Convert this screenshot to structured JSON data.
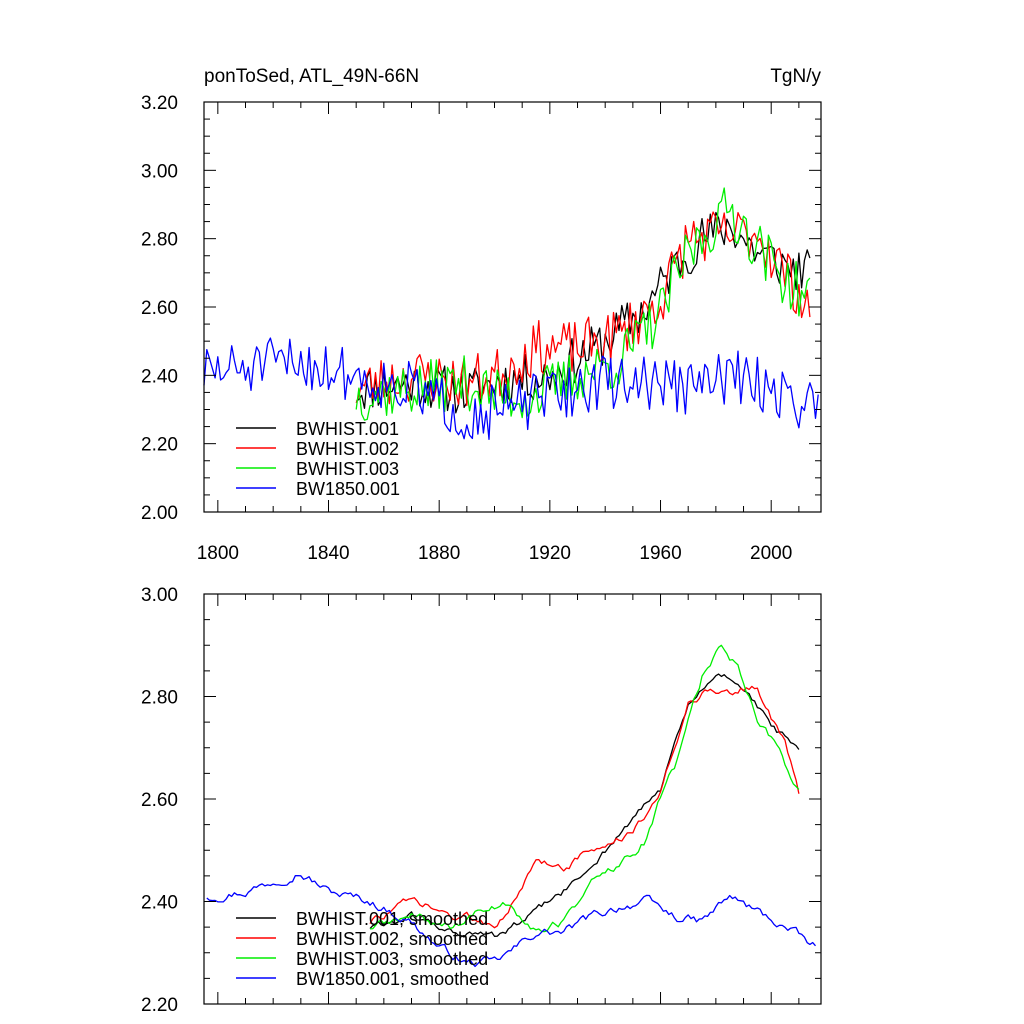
{
  "chart_data": [
    {
      "type": "line",
      "title_left": "ponToSed, ATL_49N-66N",
      "title_right": "TgN/y",
      "xlabel": "",
      "ylabel": "",
      "xlim": [
        1795,
        2018
      ],
      "ylim": [
        2.0,
        3.2
      ],
      "xticks": [
        1800,
        1840,
        1880,
        1920,
        1960,
        2000
      ],
      "xtick_labels": [
        "1800",
        "1840",
        "1880",
        "1920",
        "1960",
        "2000"
      ],
      "yticks": [
        2.0,
        2.2,
        2.4,
        2.6,
        2.8,
        3.0,
        3.2
      ],
      "ytick_labels": [
        "2.00",
        "2.20",
        "2.40",
        "2.60",
        "2.80",
        "3.00",
        "3.20"
      ],
      "legend_position": "bottom-left",
      "series": [
        {
          "name": "BWHIST.001",
          "color": "#000000",
          "x_start": 1850,
          "noise": 0.07,
          "seed": 11,
          "anchors": [
            [
              1850,
              2.36
            ],
            [
              1870,
              2.38
            ],
            [
              1890,
              2.35
            ],
            [
              1900,
              2.38
            ],
            [
              1920,
              2.4
            ],
            [
              1940,
              2.5
            ],
            [
              1955,
              2.6
            ],
            [
              1965,
              2.72
            ],
            [
              1975,
              2.8
            ],
            [
              1985,
              2.84
            ],
            [
              1995,
              2.76
            ],
            [
              2005,
              2.72
            ],
            [
              2014,
              2.7
            ]
          ]
        },
        {
          "name": "BWHIST.002",
          "color": "#ff0000",
          "x_start": 1850,
          "noise": 0.08,
          "seed": 23,
          "anchors": [
            [
              1850,
              2.36
            ],
            [
              1870,
              2.4
            ],
            [
              1890,
              2.38
            ],
            [
              1900,
              2.4
            ],
            [
              1915,
              2.48
            ],
            [
              1930,
              2.48
            ],
            [
              1945,
              2.52
            ],
            [
              1960,
              2.62
            ],
            [
              1970,
              2.8
            ],
            [
              1985,
              2.81
            ],
            [
              1995,
              2.82
            ],
            [
              2005,
              2.7
            ],
            [
              2014,
              2.6
            ]
          ]
        },
        {
          "name": "BWHIST.003",
          "color": "#00ee00",
          "x_start": 1850,
          "noise": 0.08,
          "seed": 37,
          "anchors": [
            [
              1850,
              2.34
            ],
            [
              1870,
              2.36
            ],
            [
              1890,
              2.38
            ],
            [
              1900,
              2.34
            ],
            [
              1915,
              2.34
            ],
            [
              1930,
              2.4
            ],
            [
              1945,
              2.44
            ],
            [
              1960,
              2.58
            ],
            [
              1970,
              2.76
            ],
            [
              1985,
              2.89
            ],
            [
              1995,
              2.78
            ],
            [
              2005,
              2.68
            ],
            [
              2014,
              2.62
            ]
          ]
        },
        {
          "name": "BW1850.001",
          "color": "#0000ff",
          "x_start": 1795,
          "noise": 0.08,
          "seed": 51,
          "anchors": [
            [
              1795,
              2.41
            ],
            [
              1810,
              2.42
            ],
            [
              1830,
              2.44
            ],
            [
              1850,
              2.4
            ],
            [
              1870,
              2.36
            ],
            [
              1890,
              2.28
            ],
            [
              1905,
              2.3
            ],
            [
              1920,
              2.34
            ],
            [
              1940,
              2.38
            ],
            [
              1960,
              2.38
            ],
            [
              1970,
              2.36
            ],
            [
              1985,
              2.4
            ],
            [
              2000,
              2.36
            ],
            [
              2017,
              2.3
            ]
          ]
        }
      ]
    },
    {
      "type": "line",
      "title_left": "",
      "title_right": "",
      "xlabel": "",
      "ylabel": "",
      "xlim": [
        1795,
        2018
      ],
      "ylim": [
        2.2,
        3.0
      ],
      "xticks": [
        1800,
        1840,
        1880,
        1920,
        1960,
        2000
      ],
      "yticks": [
        2.2,
        2.4,
        2.6,
        2.8,
        3.0
      ],
      "ytick_labels": [
        "2.20",
        "2.40",
        "2.60",
        "2.80",
        "3.00"
      ],
      "legend_position": "bottom-left",
      "series": [
        {
          "name": "BWHIST.001, smoothed",
          "color": "#000000",
          "x_start": 1855,
          "noise": 0.006,
          "seed": 61,
          "anchors": [
            [
              1855,
              2.35
            ],
            [
              1870,
              2.37
            ],
            [
              1885,
              2.34
            ],
            [
              1900,
              2.33
            ],
            [
              1910,
              2.36
            ],
            [
              1920,
              2.4
            ],
            [
              1930,
              2.44
            ],
            [
              1940,
              2.5
            ],
            [
              1950,
              2.56
            ],
            [
              1960,
              2.62
            ],
            [
              1965,
              2.7
            ],
            [
              1970,
              2.78
            ],
            [
              1975,
              2.81
            ],
            [
              1980,
              2.84
            ],
            [
              1985,
              2.84
            ],
            [
              1990,
              2.82
            ],
            [
              1995,
              2.78
            ],
            [
              2000,
              2.74
            ],
            [
              2005,
              2.72
            ],
            [
              2010,
              2.69
            ]
          ]
        },
        {
          "name": "BWHIST.002, smoothed",
          "color": "#ff0000",
          "x_start": 1855,
          "noise": 0.007,
          "seed": 73,
          "anchors": [
            [
              1855,
              2.36
            ],
            [
              1870,
              2.4
            ],
            [
              1885,
              2.37
            ],
            [
              1900,
              2.36
            ],
            [
              1910,
              2.42
            ],
            [
              1915,
              2.48
            ],
            [
              1925,
              2.47
            ],
            [
              1935,
              2.5
            ],
            [
              1945,
              2.52
            ],
            [
              1955,
              2.56
            ],
            [
              1960,
              2.62
            ],
            [
              1965,
              2.7
            ],
            [
              1970,
              2.79
            ],
            [
              1975,
              2.81
            ],
            [
              1985,
              2.81
            ],
            [
              1995,
              2.82
            ],
            [
              2000,
              2.76
            ],
            [
              2005,
              2.71
            ],
            [
              2010,
              2.61
            ]
          ]
        },
        {
          "name": "BWHIST.003, smoothed",
          "color": "#00ee00",
          "x_start": 1855,
          "noise": 0.007,
          "seed": 89,
          "anchors": [
            [
              1855,
              2.35
            ],
            [
              1870,
              2.37
            ],
            [
              1885,
              2.35
            ],
            [
              1895,
              2.38
            ],
            [
              1905,
              2.4
            ],
            [
              1915,
              2.34
            ],
            [
              1925,
              2.36
            ],
            [
              1935,
              2.44
            ],
            [
              1945,
              2.47
            ],
            [
              1955,
              2.52
            ],
            [
              1960,
              2.6
            ],
            [
              1965,
              2.66
            ],
            [
              1970,
              2.76
            ],
            [
              1975,
              2.84
            ],
            [
              1982,
              2.9
            ],
            [
              1988,
              2.86
            ],
            [
              1995,
              2.76
            ],
            [
              2002,
              2.7
            ],
            [
              2010,
              2.62
            ]
          ]
        },
        {
          "name": "BW1850.001, smoothed",
          "color": "#0000ff",
          "x_start": 1796,
          "noise": 0.007,
          "seed": 97,
          "anchors": [
            [
              1796,
              2.41
            ],
            [
              1810,
              2.42
            ],
            [
              1820,
              2.44
            ],
            [
              1829,
              2.46
            ],
            [
              1840,
              2.42
            ],
            [
              1855,
              2.4
            ],
            [
              1870,
              2.36
            ],
            [
              1880,
              2.31
            ],
            [
              1890,
              2.28
            ],
            [
              1900,
              2.28
            ],
            [
              1908,
              2.31
            ],
            [
              1915,
              2.34
            ],
            [
              1925,
              2.34
            ],
            [
              1935,
              2.37
            ],
            [
              1945,
              2.39
            ],
            [
              1955,
              2.4
            ],
            [
              1965,
              2.37
            ],
            [
              1975,
              2.36
            ],
            [
              1985,
              2.41
            ],
            [
              1995,
              2.38
            ],
            [
              2005,
              2.35
            ],
            [
              2016,
              2.31
            ]
          ]
        }
      ]
    }
  ]
}
